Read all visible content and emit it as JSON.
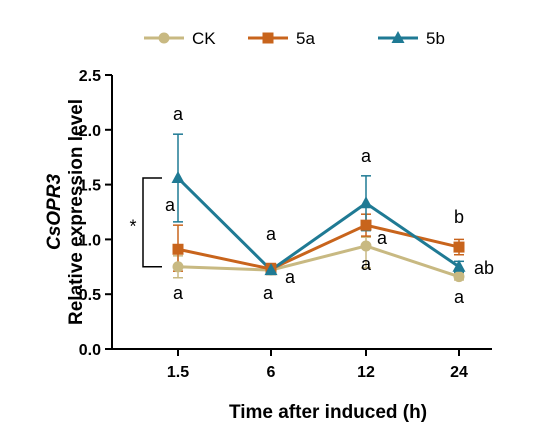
{
  "chart_data": {
    "type": "line",
    "x": [
      "1.5",
      "6",
      "12",
      "24"
    ],
    "xlabel": "Time after induced (h)",
    "ylabel_italic": "CsOPR3",
    "ylabel": "Relative expression level",
    "ylim": [
      0,
      2.5
    ],
    "yticks": [
      "0.0",
      "0.5",
      "1.0",
      "1.5",
      "2.0",
      "2.5"
    ],
    "grid": false,
    "legend_position": "top",
    "series": [
      {
        "name": "CK",
        "color": "#c8b982",
        "marker": "circle",
        "values": [
          0.75,
          0.72,
          0.94,
          0.66
        ],
        "err_up": [
          0.1,
          0.03,
          0.08,
          0.03
        ],
        "err_down": [
          0.1,
          0.03,
          0.2,
          0.03
        ],
        "labels": [
          "a",
          "a",
          "a",
          "a"
        ]
      },
      {
        "name": "5a",
        "color": "#c8641c",
        "marker": "square",
        "values": [
          0.91,
          0.73,
          1.13,
          0.93
        ],
        "err_up": [
          0.22,
          0.05,
          0.1,
          0.07
        ],
        "err_down": [
          0.2,
          0.05,
          0.1,
          0.07
        ],
        "labels": [
          "a",
          "a",
          "a",
          "b"
        ]
      },
      {
        "name": "5b",
        "color": "#1f7a94",
        "marker": "triangle",
        "values": [
          1.56,
          0.72,
          1.33,
          0.75
        ],
        "err_up": [
          0.4,
          0.03,
          0.25,
          0.05
        ],
        "err_down": [
          0.4,
          0.03,
          0.25,
          0.05
        ],
        "labels": [
          "a",
          "a",
          "a",
          "ab"
        ]
      }
    ],
    "significance_marker": "*"
  }
}
